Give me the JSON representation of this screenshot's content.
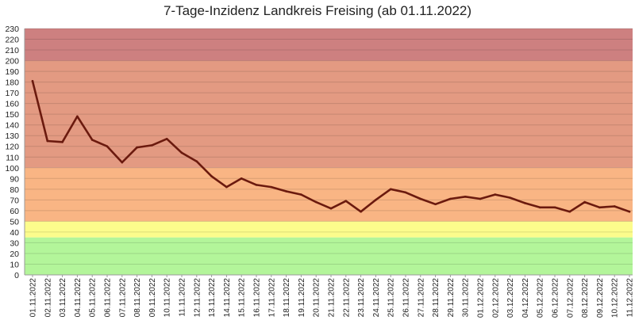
{
  "chart_data": {
    "type": "line",
    "title": "7-Tage-Inzidenz Landkreis Freising (ab 01.11.2022)",
    "xlabel": "",
    "ylabel": "",
    "ylim": [
      0,
      230
    ],
    "yticks": [
      0,
      10,
      20,
      30,
      40,
      50,
      60,
      70,
      80,
      90,
      100,
      110,
      120,
      130,
      140,
      150,
      160,
      170,
      180,
      190,
      200,
      210,
      220,
      230
    ],
    "grid": true,
    "legend": "none",
    "categories": [
      "01.11.2022",
      "02.11.2022",
      "03.11.2022",
      "04.11.2022",
      "05.11.2022",
      "06.11.2022",
      "07.11.2022",
      "08.11.2022",
      "09.11.2022",
      "10.11.2022",
      "11.11.2022",
      "12.11.2022",
      "13.11.2022",
      "14.11.2022",
      "15.11.2022",
      "16.11.2022",
      "17.11.2022",
      "18.11.2022",
      "19.11.2022",
      "20.11.2022",
      "21.11.2022",
      "22.11.2022",
      "23.11.2022",
      "24.11.2022",
      "25.11.2022",
      "26.11.2022",
      "27.11.2022",
      "28.11.2022",
      "29.11.2022",
      "30.11.2022",
      "01.12.2022",
      "02.12.2022",
      "03.12.2022",
      "04.12.2022",
      "05.12.2022",
      "06.12.2022",
      "07.12.2022",
      "08.12.2022",
      "09.12.2022",
      "10.12.2022",
      "11.12.2022"
    ],
    "series": [
      {
        "name": "",
        "color": "#6b1a0e",
        "values": [
          181,
          125,
          124,
          148,
          126,
          120,
          105,
          119,
          121,
          127,
          114,
          106,
          92,
          82,
          90,
          84,
          82,
          78,
          75,
          68,
          62,
          69,
          59,
          70,
          80,
          77,
          71,
          66,
          71,
          73,
          71,
          75,
          72,
          67,
          63,
          63,
          59,
          68,
          63,
          64,
          59
        ]
      }
    ],
    "bands": [
      {
        "from": 0,
        "to": 35,
        "color": "#b3f59a"
      },
      {
        "from": 35,
        "to": 50,
        "color": "#fcfc8c"
      },
      {
        "from": 50,
        "to": 100,
        "color": "#f9b584"
      },
      {
        "from": 100,
        "to": 200,
        "color": "#e39a82"
      },
      {
        "from": 200,
        "to": 230,
        "color": "#cd8080"
      }
    ]
  }
}
